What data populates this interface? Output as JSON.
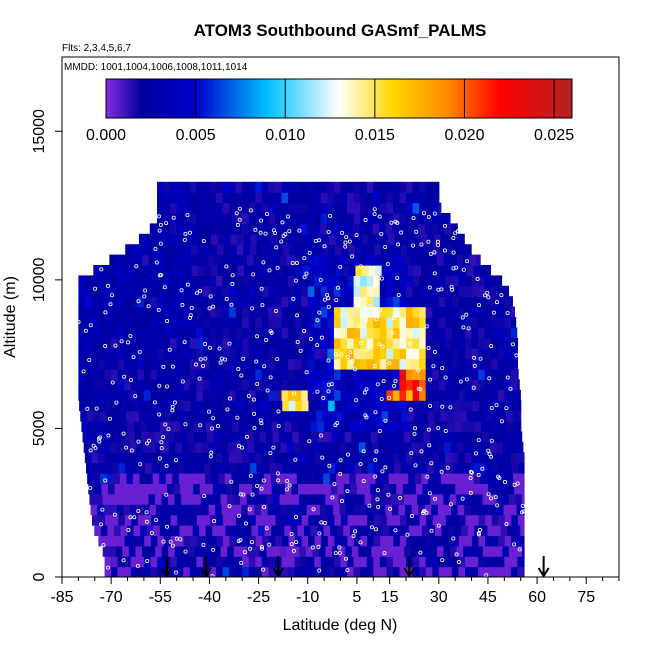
{
  "chart_data": {
    "type": "heatmap",
    "title": "ATOM3 Southbound GASmf_PALMS",
    "flights_note": "Flts: 2,3,4,5,6,7",
    "dates_note": "MMDD: 1001,1004,1006,1008,1011,1014",
    "xlabel": "Latitude (deg N)",
    "ylabel": "Altitude (m)",
    "xlim": [
      -85,
      85
    ],
    "ylim": [
      0,
      17500
    ],
    "x_ticks": [
      -85,
      -70,
      -55,
      -40,
      -25,
      -10,
      5,
      15,
      30,
      45,
      60,
      75
    ],
    "x_tick_labels": [
      "-85",
      "-70",
      "-55",
      "-40",
      "-25",
      "-10",
      "5",
      "15",
      "30",
      "45",
      "60",
      "75"
    ],
    "x_minor_ticks": [
      -80,
      -75,
      -65,
      -60,
      -50,
      -45,
      -35,
      -30,
      -20,
      -15,
      -5,
      0,
      10,
      20,
      25,
      35,
      40,
      50,
      55,
      65,
      70,
      80,
      85
    ],
    "y_ticks": [
      0,
      5000,
      10000,
      15000
    ],
    "y_tick_labels": [
      "0",
      "5000",
      "10000",
      "15000"
    ],
    "colorbar": {
      "range": [
        0,
        0.026
      ],
      "ticks": [
        0,
        0.005,
        0.01,
        0.015,
        0.02,
        0.025
      ],
      "tick_labels": [
        "0.000",
        "0.005",
        "0.010",
        "0.015",
        "0.020",
        "0.025"
      ],
      "colors": [
        "#8a2be2",
        "#0000a0",
        "#0000cd",
        "#00bfff",
        "#ffffff",
        "#ffd700",
        "#ff8c00",
        "#ff0000",
        "#b22222"
      ],
      "stops": [
        0,
        0.002,
        0.005,
        0.009,
        0.013,
        0.016,
        0.019,
        0.022,
        0.026
      ]
    },
    "coverage_envelope": {
      "altitude": [
        0,
        700,
        1000,
        1500,
        2000,
        3000,
        4000,
        5000,
        6000,
        7000,
        8000,
        9000,
        9500,
        10000,
        10500,
        11000,
        11500,
        12000,
        12500,
        13000
      ],
      "lat_south": [
        -72,
        -72,
        -73,
        -75,
        -76,
        -77,
        -78,
        -79,
        -80,
        -80,
        -80,
        -80,
        -80,
        -80,
        -73,
        -66,
        -60,
        -56,
        -56,
        -56
      ],
      "lat_north": [
        56,
        56,
        56,
        56,
        56,
        56,
        56,
        55,
        55,
        54,
        54,
        53,
        52,
        49,
        44,
        40,
        37,
        34,
        30,
        30
      ]
    },
    "enhanced_regions": [
      {
        "lat": [
          -2,
          26
        ],
        "alt": [
          7000,
          9000
        ],
        "value": 0.016
      },
      {
        "lat": [
          5,
          12
        ],
        "alt": [
          9000,
          10400
        ],
        "value": 0.014
      },
      {
        "lat": [
          18,
          25
        ],
        "alt": [
          6100,
          7000
        ],
        "value": 0.022
      },
      {
        "lat": [
          -18,
          -10
        ],
        "alt": [
          5600,
          6200
        ],
        "value": 0.016
      },
      {
        "lat": [
          15,
          22
        ],
        "alt": [
          6000,
          6400
        ],
        "value": 0.019
      }
    ],
    "flight_markers_lat": [
      -53,
      -41,
      -19,
      21,
      62
    ]
  }
}
